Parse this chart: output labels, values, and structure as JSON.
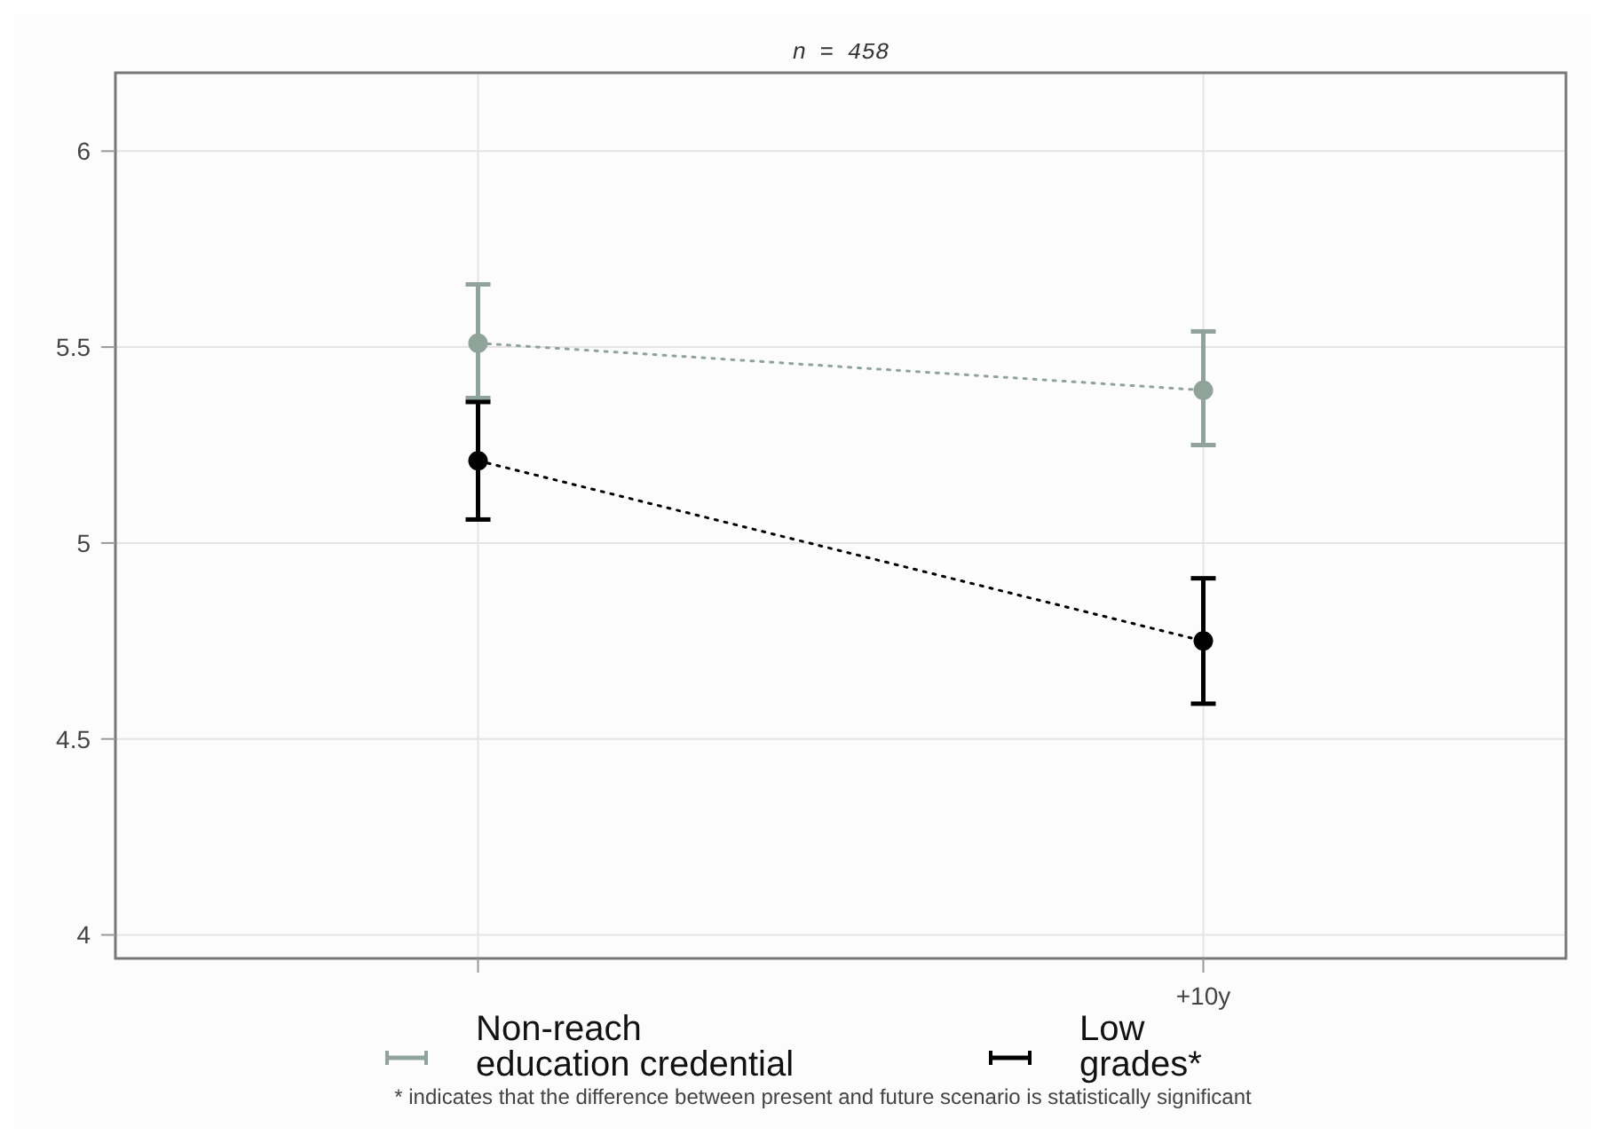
{
  "chart_data": {
    "type": "line",
    "title": "n = 458",
    "categories": [
      null,
      "+10y"
    ],
    "series": [
      {
        "name": "Non-reach education credential",
        "color": "#8fa39b",
        "values": [
          5.51,
          5.39
        ],
        "errors": [
          [
            5.37,
            5.66
          ],
          [
            5.25,
            5.54
          ]
        ]
      },
      {
        "name": "Low grades*",
        "color": "#000000",
        "values": [
          5.21,
          4.75
        ],
        "errors": [
          [
            5.06,
            5.36
          ],
          [
            4.59,
            4.91
          ]
        ]
      }
    ],
    "ylim": [
      3.94,
      6.2
    ],
    "yticks": [
      4,
      4.5,
      5,
      5.5,
      6
    ],
    "grid": true,
    "legend": "bottom",
    "marker": "circle",
    "line_style": "dotted",
    "annotations": [
      "* indicates that the difference between present and future scenario is statistically significant"
    ]
  }
}
